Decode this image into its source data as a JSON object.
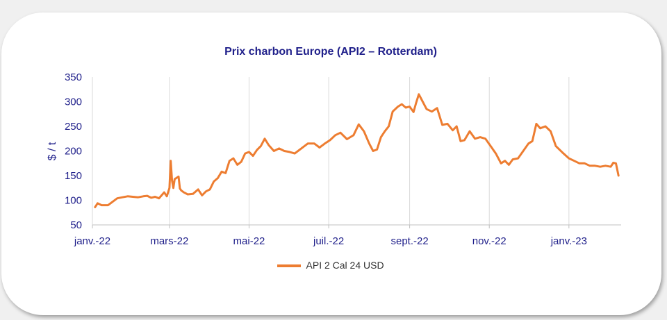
{
  "chart_data": {
    "type": "line",
    "title": "Prix charbon Europe (API2 – Rotterdam)",
    "ylabel": "$ / t",
    "xlabel": "",
    "ylim": [
      50,
      350
    ],
    "yticks": [
      50,
      100,
      150,
      200,
      250,
      300,
      350
    ],
    "x_tick_labels": [
      "janv.-22",
      "mars-22",
      "mai-22",
      "juil.-22",
      "sept.-22",
      "nov.-22",
      "janv.-23"
    ],
    "x_tick_dates": [
      "2022-01-01",
      "2022-03-01",
      "2022-05-01",
      "2022-07-01",
      "2022-09-01",
      "2022-11-01",
      "2023-01-01"
    ],
    "xlim": [
      "2022-01-01",
      "2023-02-10"
    ],
    "grid": "vertical",
    "legend_position": "bottom",
    "series": [
      {
        "name": "API 2 Cal 24 USD",
        "color": "#ed7d31",
        "x": [
          "2022-01-03",
          "2022-01-05",
          "2022-01-08",
          "2022-01-13",
          "2022-01-16",
          "2022-01-20",
          "2022-01-24",
          "2022-01-28",
          "2022-02-01",
          "2022-02-05",
          "2022-02-09",
          "2022-02-12",
          "2022-02-15",
          "2022-02-18",
          "2022-02-21",
          "2022-02-23",
          "2022-02-25",
          "2022-02-27",
          "2022-03-01",
          "2022-03-02",
          "2022-03-03",
          "2022-03-04",
          "2022-03-05",
          "2022-03-08",
          "2022-03-09",
          "2022-03-10",
          "2022-03-12",
          "2022-03-15",
          "2022-03-19",
          "2022-03-23",
          "2022-03-26",
          "2022-03-29",
          "2022-04-01",
          "2022-04-04",
          "2022-04-07",
          "2022-04-10",
          "2022-04-13",
          "2022-04-16",
          "2022-04-19",
          "2022-04-22",
          "2022-04-25",
          "2022-04-28",
          "2022-05-01",
          "2022-05-04",
          "2022-05-07",
          "2022-05-10",
          "2022-05-13",
          "2022-05-16",
          "2022-05-20",
          "2022-05-24",
          "2022-05-28",
          "2022-06-01",
          "2022-06-05",
          "2022-06-10",
          "2022-06-15",
          "2022-06-20",
          "2022-06-24",
          "2022-06-28",
          "2022-07-02",
          "2022-07-06",
          "2022-07-10",
          "2022-07-15",
          "2022-07-20",
          "2022-07-24",
          "2022-07-28",
          "2022-08-01",
          "2022-08-04",
          "2022-08-07",
          "2022-08-10",
          "2022-08-13",
          "2022-08-16",
          "2022-08-19",
          "2022-08-23",
          "2022-08-26",
          "2022-08-29",
          "2022-09-01",
          "2022-09-04",
          "2022-09-06",
          "2022-09-08",
          "2022-09-11",
          "2022-09-14",
          "2022-09-18",
          "2022-09-22",
          "2022-09-26",
          "2022-09-30",
          "2022-10-04",
          "2022-10-07",
          "2022-10-10",
          "2022-10-13",
          "2022-10-17",
          "2022-10-21",
          "2022-10-25",
          "2022-10-29",
          "2022-11-02",
          "2022-11-06",
          "2022-11-10",
          "2022-11-13",
          "2022-11-16",
          "2022-11-19",
          "2022-11-23",
          "2022-11-27",
          "2022-12-01",
          "2022-12-04",
          "2022-12-07",
          "2022-12-10",
          "2022-12-14",
          "2022-12-18",
          "2022-12-22",
          "2022-12-27",
          "2023-01-01",
          "2023-01-05",
          "2023-01-09",
          "2023-01-13",
          "2023-01-17",
          "2023-01-21",
          "2023-01-25",
          "2023-01-29",
          "2023-02-02",
          "2023-02-04",
          "2023-02-06",
          "2023-02-08"
        ],
        "values": [
          86,
          94,
          90,
          90,
          96,
          104,
          106,
          108,
          107,
          106,
          108,
          109,
          105,
          107,
          104,
          110,
          116,
          108,
          125,
          180,
          140,
          125,
          143,
          148,
          124,
          120,
          116,
          112,
          113,
          122,
          110,
          118,
          122,
          138,
          145,
          158,
          155,
          180,
          185,
          172,
          178,
          195,
          198,
          190,
          202,
          210,
          225,
          212,
          200,
          205,
          200,
          198,
          195,
          205,
          215,
          215,
          207,
          215,
          222,
          232,
          237,
          224,
          232,
          254,
          240,
          215,
          200,
          203,
          228,
          240,
          250,
          280,
          290,
          295,
          288,
          290,
          279,
          298,
          315,
          300,
          285,
          280,
          287,
          253,
          255,
          242,
          250,
          220,
          222,
          240,
          225,
          228,
          225,
          210,
          195,
          175,
          180,
          172,
          183,
          185,
          200,
          215,
          220,
          255,
          246,
          250,
          240,
          210,
          197,
          185,
          180,
          175,
          175,
          170,
          170,
          168,
          170,
          168,
          176,
          175,
          150
        ]
      }
    ]
  }
}
